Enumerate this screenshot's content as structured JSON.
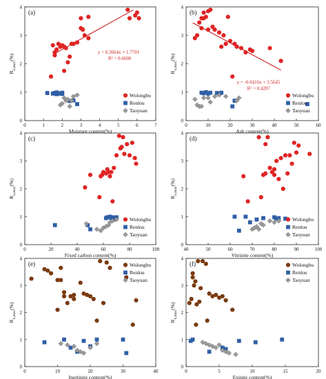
{
  "colors": {
    "red": "#e02424",
    "brown": "#7a3a10",
    "blue": "#2f5fa6",
    "gray": "#9a9a9a",
    "trend": "#cc1f1f"
  },
  "chart_data": [
    {
      "type": "scatter",
      "panel_label": "(a)",
      "xlabel": "Moisture content(%)",
      "ylabel": "R_o,max(%)",
      "xlim": [
        0,
        7
      ],
      "xticks": [
        0,
        1,
        2,
        3,
        4,
        5,
        6,
        7
      ],
      "ylim": [
        0,
        4
      ],
      "yticks": [
        0,
        1,
        2,
        3,
        4
      ],
      "legend_position": "bottom-right",
      "trend": {
        "slope": 0.3664,
        "intercept": 1.7701,
        "x_range": [
          1.6,
          5.8
        ],
        "equation": "y = 0.3664x + 1.7701",
        "r2": "R² = 0.6608"
      },
      "series": [
        {
          "name": "Wolongbu",
          "marker": "circle",
          "color": "red",
          "x": [
            1.4,
            1.5,
            1.6,
            1.6,
            1.7,
            1.8,
            1.9,
            2.0,
            2.1,
            2.1,
            2.2,
            2.3,
            2.4,
            2.5,
            2.6,
            2.8,
            3.0,
            3.0,
            3.1,
            3.2,
            3.4,
            3.4,
            5.5,
            5.6,
            5.9,
            6.0,
            6.1
          ],
          "y": [
            1.55,
            2.65,
            2.4,
            2.3,
            2.5,
            2.7,
            2.6,
            2.65,
            1.75,
            2.6,
            2.55,
            2.05,
            2.25,
            2.7,
            2.7,
            2.75,
            3.6,
            3.25,
            3.2,
            3.0,
            2.9,
            3.65,
            3.9,
            3.6,
            3.7,
            3.8,
            3.6
          ]
        },
        {
          "name": "Renlou",
          "marker": "square",
          "color": "blue",
          "x": [
            1.2,
            1.5,
            1.6,
            1.7,
            1.7,
            1.8,
            1.9,
            2.0,
            2.0,
            2.4,
            2.6,
            2.8
          ],
          "y": [
            0.97,
            0.95,
            0.97,
            0.99,
            0.93,
            0.95,
            0.96,
            0.98,
            0.94,
            0.69,
            0.71,
            0.58
          ]
        },
        {
          "name": "Taoyuan",
          "marker": "diamond",
          "color": "gray",
          "x": [
            1.9,
            2.0,
            2.1,
            2.2,
            2.3,
            2.4,
            2.5,
            2.6,
            2.8
          ],
          "y": [
            0.55,
            0.6,
            0.8,
            0.7,
            0.75,
            0.5,
            0.7,
            0.85,
            0.9
          ]
        }
      ]
    },
    {
      "type": "scatter",
      "panel_label": "(b)",
      "xlabel": "Ash content(%)",
      "ylabel": "R_o,max(%)",
      "xlim": [
        0,
        60
      ],
      "xticks": [
        0,
        10,
        20,
        30,
        40,
        50,
        60
      ],
      "ylim": [
        0,
        4
      ],
      "yticks": [
        0,
        1,
        2,
        3,
        4
      ],
      "legend_position": "bottom-right",
      "trend": {
        "slope": -0.0416,
        "intercept": 3.5645,
        "x_range": [
          3,
          43
        ],
        "equation": "y = -0.0416x + 3.5645",
        "r2": "R² = 0.4287"
      },
      "series": [
        {
          "name": "Wolongbu",
          "marker": "circle",
          "color": "red",
          "x": [
            4,
            5,
            6,
            7,
            7,
            8,
            8,
            9,
            10,
            10,
            11,
            12,
            13,
            15,
            16,
            17,
            18,
            19,
            20,
            21,
            22,
            23,
            25,
            27,
            29,
            30,
            38,
            43
          ],
          "y": [
            2.9,
            3.0,
            3.45,
            3.25,
            3.6,
            3.6,
            3.8,
            3.65,
            3.85,
            3.2,
            3.9,
            3.3,
            3.2,
            3.1,
            2.6,
            3.0,
            2.7,
            3.65,
            2.8,
            1.55,
            2.7,
            2.6,
            2.55,
            2.4,
            2.5,
            2.45,
            2.55,
            2.1
          ]
        },
        {
          "name": "Renlou",
          "marker": "square",
          "color": "blue",
          "x": [
            7,
            8,
            9,
            10,
            11,
            14,
            15,
            16,
            21,
            22,
            55
          ],
          "y": [
            0.98,
            0.96,
            1.0,
            0.95,
            0.98,
            0.97,
            0.93,
            0.98,
            0.5,
            0.7,
            0.58
          ]
        },
        {
          "name": "Taoyuan",
          "marker": "diamond",
          "color": "gray",
          "x": [
            4,
            5,
            6,
            7,
            8,
            10,
            11,
            13,
            15,
            18,
            23,
            24
          ],
          "y": [
            0.75,
            0.55,
            0.5,
            0.5,
            0.8,
            0.8,
            0.65,
            0.85,
            0.9,
            0.85,
            0.7,
            0.8
          ]
        }
      ]
    },
    {
      "type": "scatter",
      "panel_label": "(c)",
      "xlabel": "Fixed carbon content(%)",
      "ylabel": "R_o,max(%)",
      "xlim": [
        0,
        100
      ],
      "xticks": [
        0,
        20,
        40,
        60,
        80,
        100
      ],
      "ylim": [
        0,
        4
      ],
      "yticks": [
        0,
        1,
        2,
        3,
        4
      ],
      "legend_position": "bottom-right",
      "series": [
        {
          "name": "Wolongbu",
          "marker": "circle",
          "color": "red",
          "x": [
            46,
            50,
            57,
            58,
            59,
            60,
            62,
            63,
            64,
            65,
            66,
            67,
            68,
            70,
            72,
            73,
            74,
            75,
            76,
            78,
            80,
            82,
            84,
            85
          ],
          "y": [
            2.05,
            2.5,
            1.7,
            2.45,
            2.5,
            2.6,
            2.55,
            2.7,
            2.6,
            2.45,
            2.6,
            1.55,
            2.75,
            3.2,
            3.9,
            3.45,
            3.5,
            3.85,
            3.25,
            3.6,
            3.2,
            3.65,
            3.1,
            2.9
          ]
        },
        {
          "name": "Renlou",
          "marker": "square",
          "color": "blue",
          "x": [
            23,
            48,
            50,
            62,
            63,
            65,
            66,
            67,
            68,
            69,
            70
          ],
          "y": [
            0.7,
            0.7,
            0.55,
            0.95,
            0.98,
            1.0,
            0.96,
            0.98,
            0.9,
            0.96,
            0.98
          ]
        },
        {
          "name": "Taoyuan",
          "marker": "diamond",
          "color": "gray",
          "x": [
            47,
            55,
            58,
            60,
            62,
            64,
            65,
            67,
            70
          ],
          "y": [
            0.75,
            0.55,
            0.5,
            0.6,
            0.65,
            0.7,
            0.8,
            0.85,
            0.9
          ]
        }
      ]
    },
    {
      "type": "scatter",
      "panel_label": "(d)",
      "xlabel": "Vitrinite content(%)",
      "ylabel": "R_o,max(%)",
      "xlim": [
        40,
        100
      ],
      "xticks": [
        40,
        50,
        60,
        70,
        80,
        90,
        100
      ],
      "ylim": [
        0,
        4
      ],
      "yticks": [
        0,
        1,
        2,
        3,
        4
      ],
      "legend_position": "bottom-right",
      "series": [
        {
          "name": "Wolongbu",
          "marker": "circle",
          "color": "red",
          "x": [
            66,
            68,
            73,
            74,
            75,
            76,
            76,
            77,
            78,
            79,
            80,
            80,
            81,
            82,
            83,
            84,
            85,
            86,
            87,
            88,
            89,
            90,
            91,
            96
          ],
          "y": [
            2.45,
            1.55,
            3.85,
            1.7,
            2.5,
            3.6,
            2.55,
            3.85,
            2.75,
            2.6,
            2.5,
            2.7,
            3.0,
            2.35,
            3.1,
            2.0,
            3.2,
            2.55,
            3.2,
            2.9,
            3.65,
            3.3,
            3.55,
            3.25
          ]
        },
        {
          "name": "Renlou",
          "marker": "square",
          "color": "blue",
          "x": [
            62,
            64,
            67,
            69,
            72,
            75,
            80,
            81,
            82,
            85
          ],
          "y": [
            1.0,
            0.5,
            1.0,
            0.8,
            0.9,
            0.95,
            0.98,
            0.93,
            0.95,
            0.93
          ]
        },
        {
          "name": "Taoyuan",
          "marker": "diamond",
          "color": "gray",
          "x": [
            70,
            71,
            72,
            73,
            74,
            75,
            78,
            80,
            82
          ],
          "y": [
            0.55,
            0.6,
            0.65,
            0.55,
            0.75,
            0.7,
            0.85,
            0.8,
            0.85
          ]
        }
      ]
    },
    {
      "type": "scatter",
      "panel_label": "(e)",
      "xlabel": "Inertinite content(%)",
      "ylabel": "R_o,max(%)",
      "xlim": [
        0,
        40
      ],
      "xticks": [
        0,
        10,
        20,
        30,
        40
      ],
      "ylim": [
        0,
        4
      ],
      "yticks": [
        0,
        1,
        2,
        3,
        4
      ],
      "legend_position": "top-right",
      "series": [
        {
          "name": "Wolongbu",
          "marker": "circle",
          "color": "brown",
          "x": [
            2,
            6,
            7,
            8,
            10,
            10,
            11,
            11,
            12,
            12,
            13,
            14,
            15,
            15,
            17,
            18,
            19,
            20,
            21,
            22,
            23,
            24,
            25,
            26,
            31,
            33,
            34
          ],
          "y": [
            3.25,
            3.6,
            3.55,
            3.45,
            3.2,
            2.1,
            3.65,
            3.2,
            2.6,
            2.75,
            2.35,
            2.6,
            2.5,
            2.65,
            3.1,
            2.7,
            2.65,
            2.6,
            2.5,
            1.7,
            3.9,
            2.35,
            3.85,
            3.65,
            3.3,
            1.55,
            2.45
          ]
        },
        {
          "name": "Renlou",
          "marker": "square",
          "color": "blue",
          "x": [
            6,
            12,
            14,
            16,
            18,
            20,
            22,
            30,
            31
          ],
          "y": [
            0.9,
            1.0,
            0.7,
            0.55,
            0.95,
            0.75,
            1.0,
            1.0,
            0.5
          ]
        },
        {
          "name": "Taoyuan",
          "marker": "diamond",
          "color": "gray",
          "x": [
            11,
            13,
            15,
            16,
            17,
            18,
            20,
            22
          ],
          "y": [
            0.85,
            0.8,
            0.75,
            0.6,
            0.55,
            0.5,
            0.7,
            0.85
          ]
        }
      ]
    },
    {
      "type": "scatter",
      "panel_label": "(f)",
      "xlabel": "Exinite content(%)",
      "ylabel": "R_o,max(%)",
      "xlim": [
        0,
        20
      ],
      "xticks": [
        0,
        5,
        10,
        15,
        20
      ],
      "ylim": [
        0,
        4
      ],
      "yticks": [
        0,
        1,
        2,
        3,
        4
      ],
      "legend_position": "top-right",
      "series": [
        {
          "name": "Wolongbu",
          "marker": "circle",
          "color": "brown",
          "x": [
            0.5,
            0.8,
            1,
            1,
            1.2,
            1.4,
            1.5,
            1.6,
            1.8,
            2,
            2.2,
            2.5,
            3,
            3.2,
            3.5,
            4,
            4.5,
            5,
            5.5,
            6,
            7
          ],
          "y": [
            2.35,
            2.5,
            3.45,
            3.3,
            3.0,
            3.15,
            1.55,
            2.3,
            3.9,
            2.4,
            2.9,
            3.9,
            3.8,
            1.7,
            2.7,
            2.6,
            2.65,
            2.55,
            2.6,
            2.45,
            2.1
          ]
        },
        {
          "name": "Renlou",
          "marker": "square",
          "color": "blue",
          "x": [
            0.7,
            1,
            3.5,
            5.5,
            6,
            8,
            10.5,
            14.5
          ],
          "y": [
            0.95,
            1.0,
            0.55,
            0.7,
            0.65,
            0.95,
            0.9,
            1.0
          ]
        },
        {
          "name": "Taoyuan",
          "marker": "diamond",
          "color": "gray",
          "x": [
            2.5,
            3,
            3.5,
            4,
            4.5,
            5,
            5.5,
            6,
            6.5,
            7.5
          ],
          "y": [
            0.9,
            0.85,
            0.8,
            0.75,
            0.7,
            0.8,
            0.6,
            0.55,
            0.5,
            0.45
          ]
        }
      ]
    }
  ]
}
